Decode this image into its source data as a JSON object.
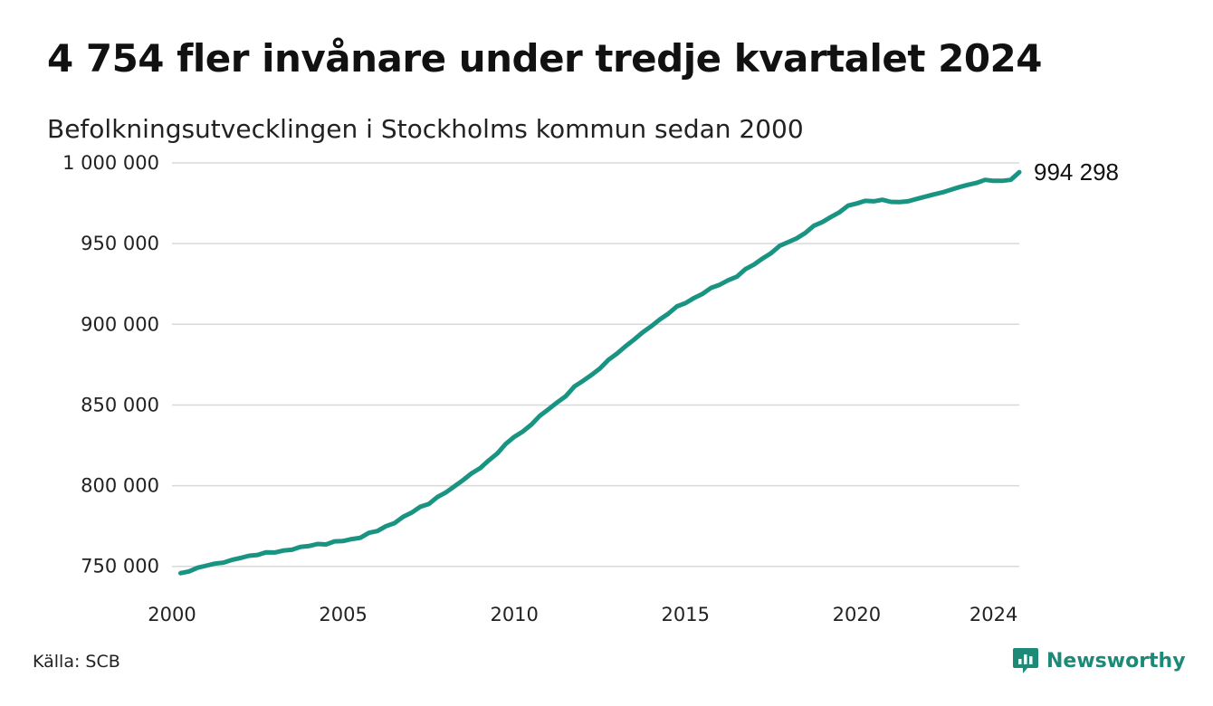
{
  "title": "4 754 fler invånare under tredje kvartalet 2024",
  "subtitle": "Befolkningsutvecklingen i Stockholms kommun sedan 2000",
  "source": "Källa: SCB",
  "brand": {
    "name": "Newsworthy",
    "icon": "newsworthy-logo-icon"
  },
  "colors": {
    "line": "#1a9482",
    "grid": "#d9d9d9",
    "brand": "#1c8a77"
  },
  "chart_data": {
    "type": "line",
    "title": "4 754 fler invånare under tredje kvartalet 2024",
    "subtitle": "Befolkningsutvecklingen i Stockholms kommun sedan 2000",
    "xlabel": "",
    "ylabel": "",
    "xlim": [
      2000,
      2024.75
    ],
    "ylim": [
      742000,
      1000000
    ],
    "x_ticks": [
      2000,
      2005,
      2010,
      2015,
      2020,
      2024
    ],
    "y_ticks": [
      750000,
      800000,
      850000,
      900000,
      950000,
      1000000
    ],
    "y_tick_labels": [
      "750 000",
      "800 000",
      "850 000",
      "900 000",
      "950 000",
      "1 000 000"
    ],
    "grid": "horizontal",
    "end_label": "994 298",
    "series": [
      {
        "x": [
          2000.25,
          2000.5,
          2000.75,
          2001.0,
          2001.25,
          2001.5,
          2001.75,
          2002.0,
          2002.25,
          2002.5,
          2002.75,
          2003.0,
          2003.25,
          2003.5,
          2003.75,
          2004.0,
          2004.25,
          2004.5,
          2004.75,
          2005.0,
          2005.25,
          2005.5,
          2005.75,
          2006.0,
          2006.25,
          2006.5,
          2006.75,
          2007.0,
          2007.25,
          2007.5,
          2007.75,
          2008.0,
          2008.25,
          2008.5,
          2008.75,
          2009.0,
          2009.25,
          2009.5,
          2009.75,
          2010.0,
          2010.25,
          2010.5,
          2010.75,
          2011.0,
          2011.25,
          2011.5,
          2011.75,
          2012.0,
          2012.25,
          2012.5,
          2012.75,
          2013.0,
          2013.25,
          2013.5,
          2013.75,
          2014.0,
          2014.25,
          2014.5,
          2014.75,
          2015.0,
          2015.25,
          2015.5,
          2015.75,
          2016.0,
          2016.25,
          2016.5,
          2016.75,
          2017.0,
          2017.25,
          2017.5,
          2017.75,
          2018.0,
          2018.25,
          2018.5,
          2018.75,
          2019.0,
          2019.25,
          2019.5,
          2019.75,
          2020.0,
          2020.25,
          2020.5,
          2020.75,
          2021.0,
          2021.25,
          2021.5,
          2021.75,
          2022.0,
          2022.25,
          2022.5,
          2022.75,
          2023.0,
          2023.25,
          2023.5,
          2023.75,
          2024.0,
          2024.25,
          2024.5,
          2024.75
        ],
        "y": [
          745800,
          746900,
          749200,
          750400,
          751700,
          752300,
          754000,
          755200,
          756600,
          757100,
          758700,
          758600,
          759800,
          760300,
          762100,
          762600,
          763900,
          763600,
          765500,
          765700,
          766900,
          767700,
          770800,
          771900,
          774900,
          776800,
          780700,
          783300,
          786900,
          788600,
          792900,
          795800,
          799600,
          803400,
          807600,
          810900,
          815600,
          819900,
          825900,
          830300,
          833600,
          837900,
          843400,
          847400,
          851600,
          855400,
          861400,
          864900,
          868600,
          872600,
          878000,
          881900,
          886400,
          890500,
          895000,
          898800,
          903000,
          906600,
          911100,
          913100,
          916300,
          918900,
          922600,
          924500,
          927300,
          929500,
          934200,
          937000,
          940800,
          944100,
          948600,
          950900,
          953300,
          956600,
          961100,
          963400,
          966500,
          969500,
          973500,
          974900,
          976500,
          976200,
          977200,
          975900,
          975700,
          976200,
          977700,
          979100,
          980500,
          981700,
          983400,
          985000,
          986400,
          987600,
          989500,
          988900,
          988900,
          989500,
          994298
        ]
      }
    ]
  }
}
